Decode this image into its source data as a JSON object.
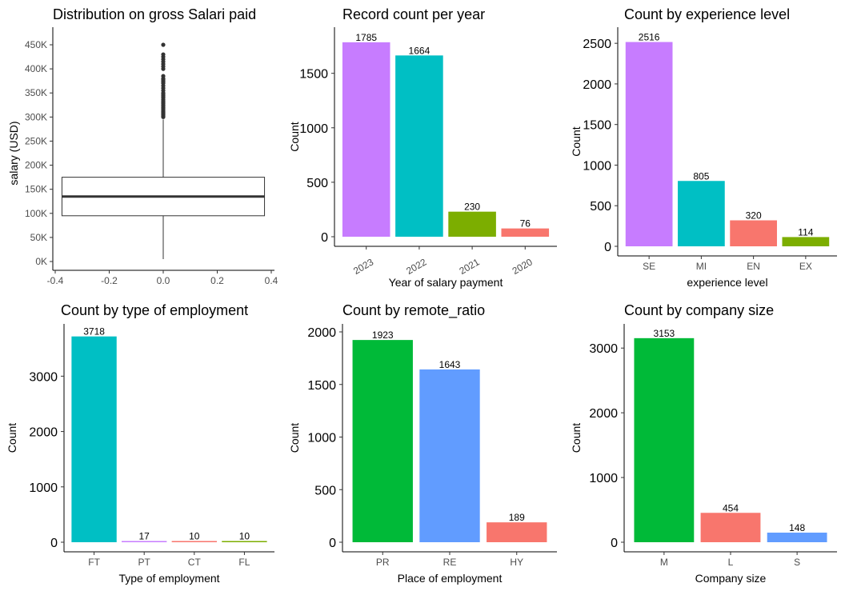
{
  "chart_data": [
    {
      "type": "box",
      "title": "Distribution on gross Salari paid",
      "xlabel": "",
      "ylabel": "salary (USD)",
      "xlim": [
        -0.4,
        0.4
      ],
      "xticks": [
        "-0.4",
        "-0.2",
        "0.0",
        "0.2",
        "0.4"
      ],
      "ylim": [
        0,
        450000
      ],
      "yticks": [
        "0K",
        "50K",
        "100K",
        "150K",
        "200K",
        "250K",
        "300K",
        "350K",
        "400K",
        "450K"
      ],
      "box": {
        "q1": 95000,
        "median": 135000,
        "q3": 175000,
        "whisker_low": 5000,
        "whisker_high": 295000
      },
      "outliers": [
        300000,
        302000,
        304000,
        306000,
        308000,
        310000,
        312000,
        315000,
        318000,
        320000,
        323000,
        325000,
        328000,
        330000,
        333000,
        336000,
        340000,
        342000,
        345000,
        348000,
        350000,
        355000,
        360000,
        365000,
        370000,
        372000,
        375000,
        378000,
        380000,
        385000,
        400000,
        405000,
        410000,
        415000,
        420000,
        425000,
        430000,
        450000
      ]
    },
    {
      "type": "bar",
      "title": "Record count per year",
      "xlabel": "Year of salary payment",
      "ylabel": "Count",
      "categories": [
        "2023",
        "2022",
        "2021",
        "2020"
      ],
      "values": [
        1785,
        1664,
        230,
        76
      ],
      "colors": [
        "#C77CFF",
        "#00BFC4",
        "#7CAE00",
        "#F8766D"
      ],
      "ylim": [
        0,
        1850
      ],
      "yticks": [
        "0",
        "500",
        "1000",
        "1500"
      ],
      "rotated_xticks": true
    },
    {
      "type": "bar",
      "title": "Count by experience level",
      "xlabel": "experience level",
      "ylabel": "Count",
      "categories": [
        "SE",
        "MI",
        "EN",
        "EX"
      ],
      "values": [
        2516,
        805,
        320,
        114
      ],
      "colors": [
        "#C77CFF",
        "#00BFC4",
        "#F8766D",
        "#7CAE00"
      ],
      "ylim": [
        0,
        2600
      ],
      "yticks": [
        "0",
        "500",
        "1000",
        "1500",
        "2000",
        "2500"
      ]
    },
    {
      "type": "bar",
      "title": "Count by type of employment",
      "xlabel": "Type of employment",
      "ylabel": "Count",
      "categories": [
        "FT",
        "PT",
        "CT",
        "FL"
      ],
      "values": [
        3718,
        17,
        10,
        10
      ],
      "colors": [
        "#00BFC4",
        "#C77CFF",
        "#F8766D",
        "#7CAE00"
      ],
      "ylim": [
        0,
        3800
      ],
      "yticks": [
        "0",
        "1000",
        "2000",
        "3000"
      ]
    },
    {
      "type": "bar",
      "title": "Count by remote_ratio",
      "xlabel": "Place of employment",
      "ylabel": "Count",
      "categories": [
        "PR",
        "RE",
        "HY"
      ],
      "values": [
        1923,
        1643,
        189
      ],
      "colors": [
        "#00BA38",
        "#619CFF",
        "#F8766D"
      ],
      "ylim": [
        0,
        2000
      ],
      "yticks": [
        "0",
        "500",
        "1000",
        "1500",
        "2000"
      ]
    },
    {
      "type": "bar",
      "title": "Count by company size",
      "xlabel": "Company size",
      "ylabel": "Count",
      "categories": [
        "M",
        "L",
        "S"
      ],
      "values": [
        3153,
        454,
        148
      ],
      "colors": [
        "#00BA38",
        "#F8766D",
        "#619CFF"
      ],
      "ylim": [
        0,
        3250
      ],
      "yticks": [
        "0",
        "1000",
        "2000",
        "3000"
      ]
    }
  ]
}
